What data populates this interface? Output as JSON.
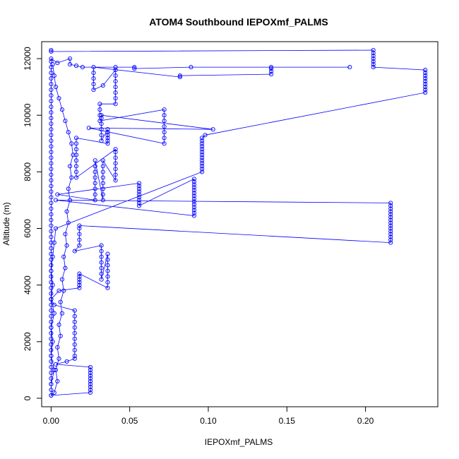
{
  "chart_data": {
    "type": "line",
    "title": "ATOM4 Southbound IEPOXmf_PALMS",
    "xlabel": "IEPOXmf_PALMS",
    "ylabel": "Altitude (m)",
    "xlim": [
      -0.006,
      0.246
    ],
    "ylim": [
      -300,
      12600
    ],
    "x_ticks": [
      0.0,
      0.05,
      0.1,
      0.15,
      0.2
    ],
    "x_tick_labels": [
      "0.00",
      "0.05",
      "0.10",
      "0.15",
      "0.20"
    ],
    "y_ticks": [
      0,
      2000,
      4000,
      6000,
      8000,
      10000,
      12000
    ],
    "y_tick_labels": [
      "0",
      "2000",
      "4000",
      "6000",
      "8000",
      "10000",
      "12000"
    ],
    "grid": false,
    "legend": "none",
    "marker": "open-circle",
    "line_color": "#0000ff",
    "series": [
      {
        "values_note": "",
        "points": [
          [
            0.0,
            12300
          ],
          [
            0.0,
            12250
          ],
          [
            0.205,
            12300
          ],
          [
            0.205,
            12200
          ],
          [
            0.205,
            12100
          ],
          [
            0.205,
            12000
          ],
          [
            0.205,
            11900
          ],
          [
            0.205,
            11800
          ],
          [
            0.205,
            11700
          ],
          [
            0.238,
            11600
          ],
          [
            0.238,
            11500
          ],
          [
            0.238,
            11400
          ],
          [
            0.238,
            11300
          ],
          [
            0.238,
            11200
          ],
          [
            0.238,
            11100
          ],
          [
            0.238,
            11000
          ],
          [
            0.238,
            10900
          ],
          [
            0.238,
            10800
          ],
          [
            0.098,
            9300
          ],
          [
            0.096,
            9200
          ],
          [
            0.096,
            9100
          ],
          [
            0.096,
            9000
          ],
          [
            0.096,
            8900
          ],
          [
            0.096,
            8800
          ],
          [
            0.096,
            8700
          ],
          [
            0.096,
            8600
          ],
          [
            0.096,
            8500
          ],
          [
            0.096,
            8400
          ],
          [
            0.096,
            8300
          ],
          [
            0.096,
            8200
          ],
          [
            0.096,
            8100
          ],
          [
            0.096,
            8000
          ],
          [
            0.003,
            6000
          ],
          [
            0.002,
            5500
          ],
          [
            0.001,
            5000
          ],
          [
            0.0,
            4500
          ],
          [
            0.001,
            4000
          ],
          [
            0.0,
            3500
          ],
          [
            0.002,
            3000
          ],
          [
            0.0,
            2500
          ],
          [
            0.001,
            2000
          ],
          [
            0.0,
            1500
          ],
          [
            0.002,
            1000
          ],
          [
            0.0,
            500
          ],
          [
            0.0,
            100
          ],
          [
            0.025,
            200
          ],
          [
            0.025,
            300
          ],
          [
            0.025,
            400
          ],
          [
            0.025,
            500
          ],
          [
            0.025,
            600
          ],
          [
            0.025,
            700
          ],
          [
            0.025,
            800
          ],
          [
            0.025,
            900
          ],
          [
            0.025,
            1000
          ],
          [
            0.025,
            1100
          ],
          [
            0.003,
            1200
          ],
          [
            0.01,
            1300
          ],
          [
            0.015,
            1400
          ],
          [
            0.015,
            1500
          ],
          [
            0.015,
            1700
          ],
          [
            0.015,
            1900
          ],
          [
            0.015,
            2100
          ],
          [
            0.015,
            2300
          ],
          [
            0.015,
            2500
          ],
          [
            0.015,
            2700
          ],
          [
            0.015,
            2900
          ],
          [
            0.015,
            3100
          ],
          [
            0.002,
            3300
          ],
          [
            0.0,
            3500
          ],
          [
            0.005,
            3800
          ],
          [
            0.018,
            3900
          ],
          [
            0.018,
            4000
          ],
          [
            0.018,
            4100
          ],
          [
            0.018,
            4200
          ],
          [
            0.018,
            4300
          ],
          [
            0.018,
            4400
          ],
          [
            0.036,
            3900
          ],
          [
            0.036,
            4100
          ],
          [
            0.036,
            4300
          ],
          [
            0.036,
            4500
          ],
          [
            0.036,
            4700
          ],
          [
            0.036,
            4900
          ],
          [
            0.036,
            5100
          ],
          [
            0.032,
            4200
          ],
          [
            0.032,
            4400
          ],
          [
            0.032,
            4600
          ],
          [
            0.032,
            4800
          ],
          [
            0.032,
            5000
          ],
          [
            0.032,
            5200
          ],
          [
            0.032,
            5400
          ],
          [
            0.015,
            5200
          ],
          [
            0.018,
            5400
          ],
          [
            0.018,
            5600
          ],
          [
            0.018,
            5800
          ],
          [
            0.018,
            6000
          ],
          [
            0.018,
            6100
          ],
          [
            0.216,
            5500
          ],
          [
            0.216,
            5600
          ],
          [
            0.216,
            5700
          ],
          [
            0.216,
            5800
          ],
          [
            0.216,
            5900
          ],
          [
            0.216,
            6000
          ],
          [
            0.216,
            6100
          ],
          [
            0.216,
            6200
          ],
          [
            0.216,
            6300
          ],
          [
            0.216,
            6400
          ],
          [
            0.216,
            6500
          ],
          [
            0.216,
            6600
          ],
          [
            0.216,
            6700
          ],
          [
            0.216,
            6800
          ],
          [
            0.216,
            6900
          ],
          [
            0.003,
            7000
          ],
          [
            0.091,
            6450
          ],
          [
            0.091,
            6550
          ],
          [
            0.091,
            6650
          ],
          [
            0.091,
            6750
          ],
          [
            0.091,
            6850
          ],
          [
            0.091,
            6950
          ],
          [
            0.091,
            7050
          ],
          [
            0.091,
            7150
          ],
          [
            0.091,
            7250
          ],
          [
            0.091,
            7350
          ],
          [
            0.091,
            7450
          ],
          [
            0.091,
            7550
          ],
          [
            0.091,
            7650
          ],
          [
            0.091,
            7750
          ],
          [
            0.056,
            6800
          ],
          [
            0.056,
            6900
          ],
          [
            0.056,
            7000
          ],
          [
            0.056,
            7100
          ],
          [
            0.056,
            7200
          ],
          [
            0.056,
            7300
          ],
          [
            0.056,
            7400
          ],
          [
            0.056,
            7500
          ],
          [
            0.056,
            7600
          ],
          [
            0.004,
            7200
          ],
          [
            0.028,
            7000
          ],
          [
            0.028,
            7200
          ],
          [
            0.028,
            7400
          ],
          [
            0.028,
            7600
          ],
          [
            0.028,
            7800
          ],
          [
            0.028,
            8000
          ],
          [
            0.028,
            8200
          ],
          [
            0.028,
            8400
          ],
          [
            0.033,
            7000
          ],
          [
            0.033,
            7200
          ],
          [
            0.033,
            7400
          ],
          [
            0.033,
            7600
          ],
          [
            0.033,
            7800
          ],
          [
            0.033,
            8000
          ],
          [
            0.033,
            8200
          ],
          [
            0.033,
            8400
          ],
          [
            0.041,
            7700
          ],
          [
            0.041,
            7900
          ],
          [
            0.041,
            8100
          ],
          [
            0.041,
            8300
          ],
          [
            0.041,
            8500
          ],
          [
            0.041,
            8700
          ],
          [
            0.041,
            8800
          ],
          [
            0.016,
            7800
          ],
          [
            0.016,
            8000
          ],
          [
            0.016,
            8200
          ],
          [
            0.016,
            8400
          ],
          [
            0.016,
            8600
          ],
          [
            0.016,
            8800
          ],
          [
            0.016,
            9000
          ],
          [
            0.016,
            9200
          ],
          [
            0.036,
            9000
          ],
          [
            0.036,
            9100
          ],
          [
            0.036,
            9200
          ],
          [
            0.036,
            9300
          ],
          [
            0.036,
            9400
          ],
          [
            0.036,
            9500
          ],
          [
            0.032,
            9100
          ],
          [
            0.032,
            9300
          ],
          [
            0.032,
            9500
          ],
          [
            0.032,
            9700
          ],
          [
            0.032,
            9900
          ],
          [
            0.032,
            10000
          ],
          [
            0.103,
            9500
          ],
          [
            0.024,
            9550
          ],
          [
            0.072,
            9000
          ],
          [
            0.072,
            9200
          ],
          [
            0.072,
            9400
          ],
          [
            0.072,
            9600
          ],
          [
            0.072,
            9800
          ],
          [
            0.072,
            10000
          ],
          [
            0.072,
            10200
          ],
          [
            0.031,
            9800
          ],
          [
            0.031,
            10000
          ],
          [
            0.031,
            10200
          ],
          [
            0.031,
            10400
          ],
          [
            0.041,
            10400
          ],
          [
            0.041,
            10600
          ],
          [
            0.041,
            10800
          ],
          [
            0.041,
            11000
          ],
          [
            0.041,
            11200
          ],
          [
            0.041,
            11400
          ],
          [
            0.041,
            11600
          ],
          [
            0.033,
            11050
          ],
          [
            0.027,
            10900
          ],
          [
            0.027,
            11100
          ],
          [
            0.027,
            11300
          ],
          [
            0.027,
            11500
          ],
          [
            0.027,
            11700
          ],
          [
            0.082,
            11350
          ],
          [
            0.082,
            11400
          ],
          [
            0.14,
            11450
          ],
          [
            0.14,
            11550
          ],
          [
            0.14,
            11650
          ],
          [
            0.14,
            11700
          ],
          [
            0.19,
            11700
          ],
          [
            0.089,
            11700
          ],
          [
            0.053,
            11650
          ],
          [
            0.053,
            11700
          ],
          [
            0.041,
            11700
          ],
          [
            0.02,
            11700
          ],
          [
            0.016,
            11750
          ],
          [
            0.012,
            11800
          ],
          [
            0.012,
            12000
          ],
          [
            0.004,
            11850
          ],
          [
            0.0,
            12000
          ],
          [
            0.0,
            11900
          ],
          [
            0.0,
            11700
          ],
          [
            0.0,
            11500
          ],
          [
            0.0,
            11300
          ],
          [
            0.0,
            11100
          ],
          [
            0.0,
            10900
          ],
          [
            0.0,
            10700
          ],
          [
            0.0,
            10500
          ],
          [
            0.0,
            10300
          ],
          [
            0.0,
            10100
          ],
          [
            0.0,
            9900
          ],
          [
            0.0,
            9700
          ],
          [
            0.0,
            9500
          ],
          [
            0.0,
            9300
          ],
          [
            0.0,
            9100
          ],
          [
            0.0,
            8900
          ],
          [
            0.0,
            8700
          ],
          [
            0.0,
            8500
          ],
          [
            0.0,
            8300
          ],
          [
            0.0,
            8100
          ],
          [
            0.0,
            7900
          ],
          [
            0.0,
            7700
          ],
          [
            0.0,
            7500
          ],
          [
            0.0,
            7300
          ],
          [
            0.0,
            7100
          ],
          [
            0.0,
            6900
          ],
          [
            0.0,
            6700
          ],
          [
            0.0,
            6500
          ],
          [
            0.0,
            6300
          ],
          [
            0.0,
            6100
          ],
          [
            0.0,
            5900
          ],
          [
            0.0,
            5700
          ],
          [
            0.0,
            5500
          ],
          [
            0.0,
            5300
          ],
          [
            0.0,
            5100
          ],
          [
            0.0,
            4900
          ],
          [
            0.0,
            4700
          ],
          [
            0.0,
            4500
          ],
          [
            0.0,
            4300
          ],
          [
            0.0,
            4100
          ],
          [
            0.0,
            3900
          ],
          [
            0.0,
            3700
          ],
          [
            0.0,
            3500
          ],
          [
            0.0,
            3300
          ],
          [
            0.0,
            3100
          ],
          [
            0.0,
            2900
          ],
          [
            0.0,
            2700
          ],
          [
            0.0,
            2500
          ],
          [
            0.0,
            2300
          ],
          [
            0.0,
            2100
          ],
          [
            0.0,
            1900
          ],
          [
            0.0,
            1700
          ],
          [
            0.0,
            1500
          ],
          [
            0.0,
            1300
          ],
          [
            0.0,
            1100
          ],
          [
            0.0,
            900
          ],
          [
            0.0,
            700
          ],
          [
            0.0,
            500
          ],
          [
            0.0,
            300
          ],
          [
            0.0,
            100
          ],
          [
            0.002,
            200
          ],
          [
            0.004,
            600
          ],
          [
            0.003,
            1000
          ],
          [
            0.005,
            1400
          ],
          [
            0.004,
            1800
          ],
          [
            0.006,
            2200
          ],
          [
            0.005,
            2600
          ],
          [
            0.007,
            3000
          ],
          [
            0.006,
            3400
          ],
          [
            0.008,
            3800
          ],
          [
            0.007,
            4200
          ],
          [
            0.009,
            4600
          ],
          [
            0.008,
            5000
          ],
          [
            0.01,
            5400
          ],
          [
            0.009,
            5800
          ],
          [
            0.011,
            6200
          ],
          [
            0.01,
            6600
          ],
          [
            0.012,
            7000
          ],
          [
            0.011,
            7400
          ],
          [
            0.013,
            7800
          ],
          [
            0.012,
            8200
          ],
          [
            0.014,
            8600
          ],
          [
            0.013,
            9000
          ],
          [
            0.011,
            9400
          ],
          [
            0.009,
            9800
          ],
          [
            0.007,
            10200
          ],
          [
            0.005,
            10600
          ],
          [
            0.003,
            11000
          ],
          [
            0.002,
            11400
          ],
          [
            0.001,
            11800
          ]
        ]
      }
    ]
  }
}
